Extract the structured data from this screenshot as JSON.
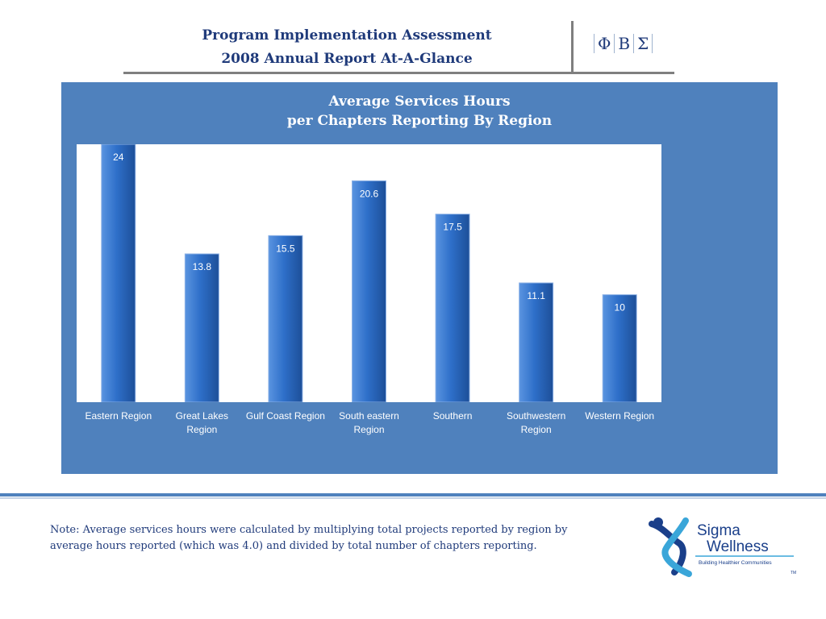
{
  "header": {
    "title_line1": "Program Implementation Assessment",
    "title_line2": "2008 Annual Report At-A-Glance",
    "greek_letters": [
      "Φ",
      "Β",
      "Σ"
    ]
  },
  "chart_data": {
    "type": "bar",
    "title_line1": "Average Services Hours",
    "title_line2": "per Chapters Reporting By Region",
    "categories": [
      [
        "Eastern Region"
      ],
      [
        "Great Lakes",
        "Region"
      ],
      [
        "Gulf Coast Region"
      ],
      [
        "South eastern",
        "Region"
      ],
      [
        "Southern"
      ],
      [
        "Southwestern",
        "Region"
      ],
      [
        "Western Region"
      ]
    ],
    "values": [
      24,
      13.8,
      15.5,
      20.6,
      17.5,
      11.1,
      10
    ],
    "value_labels": [
      "24",
      "13.8",
      "15.5",
      "20.6",
      "17.5",
      "11.1",
      "10"
    ],
    "ylim": [
      0,
      30
    ],
    "grid": false,
    "bar_color": "#2e6fc9",
    "panel_color": "#4f81bd"
  },
  "note": "Note: Average services hours were calculated by multiplying  total projects reported by region by average hours reported (which was 4.0) and divided by total number of chapters reporting.",
  "logo": {
    "line1": "Sigma",
    "line2": "Wellness",
    "tagline": "Building Healthier Communities",
    "tm": "TM"
  }
}
